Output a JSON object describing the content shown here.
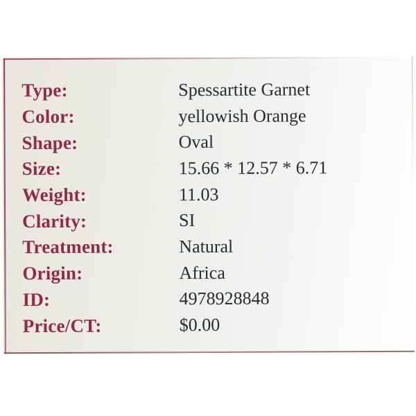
{
  "card": {
    "title": "gemstone-specification-label",
    "rows": [
      {
        "label": "Type:",
        "value": "Spessartite Garnet"
      },
      {
        "label": "Color:",
        "value": "yellowish Orange"
      },
      {
        "label": "Shape:",
        "value": "Oval"
      },
      {
        "label": "Size:",
        "value": "15.66 * 12.57 * 6.71"
      },
      {
        "label": "Weight:",
        "value": "11.03"
      },
      {
        "label": "Clarity:",
        "value": "SI"
      },
      {
        "label": "Treatment:",
        "value": "Natural"
      },
      {
        "label": "Origin:",
        "value": "Africa"
      },
      {
        "label": "ID:",
        "value": "4978928848"
      },
      {
        "label": "Price/CT:",
        "value": "$0.00"
      }
    ],
    "colors": {
      "label": "#932c42",
      "value": "#252e32",
      "border": "#96394a",
      "card_bg_left": "#e8e6de",
      "card_bg_right": "#fdfdfc",
      "page_bg": "#ffffff"
    }
  }
}
